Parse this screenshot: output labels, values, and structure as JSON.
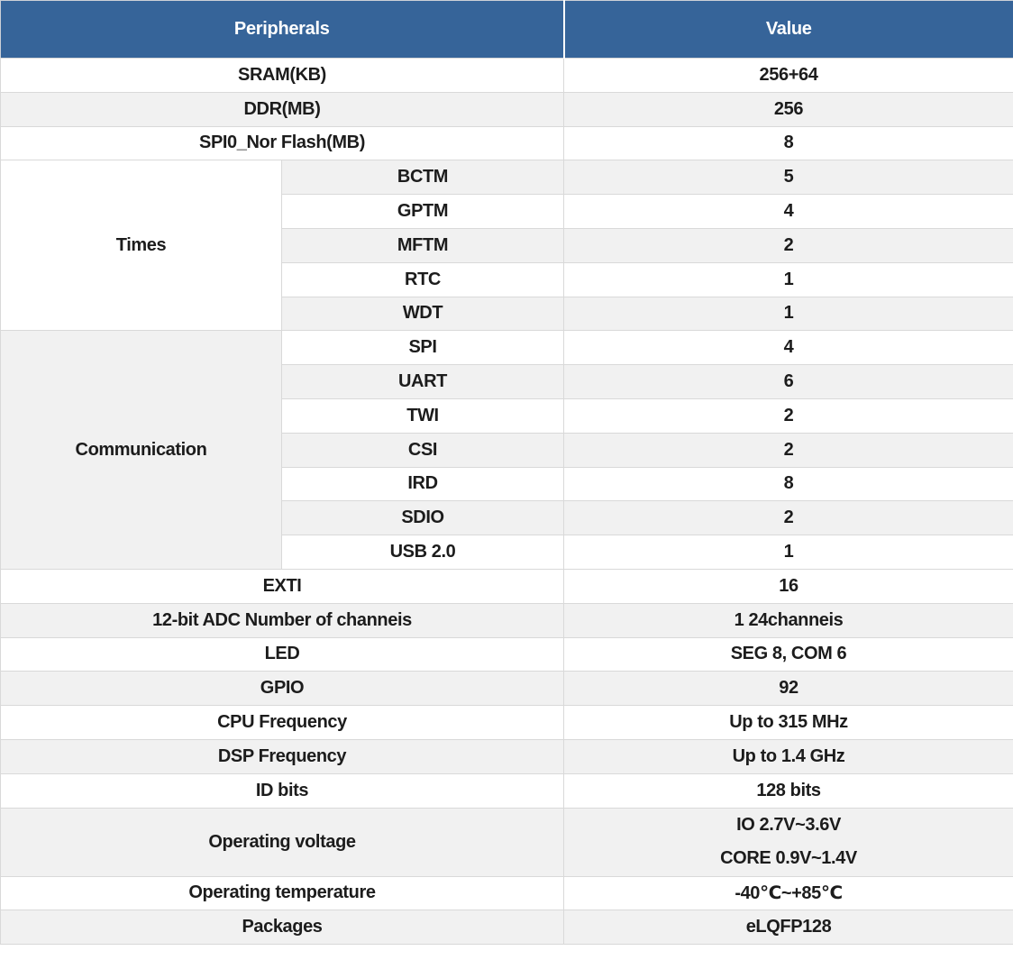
{
  "colors": {
    "header_bg": "#366499",
    "header_text": "#ffffff",
    "stripe_gray": "#f1f1f1",
    "row_white": "#ffffff",
    "border": "#d9d9d9",
    "text": "#1c1c1c"
  },
  "table": {
    "header": {
      "peripherals": "Peripherals",
      "value": "Value"
    },
    "top_rows": [
      {
        "label": "SRAM(KB)",
        "value": "256+64"
      },
      {
        "label": "DDR(MB)",
        "value": "256"
      },
      {
        "label": "SPI0_Nor Flash(MB)",
        "value": "8"
      }
    ],
    "groups": [
      {
        "label": "Times",
        "items": [
          {
            "label": "BCTM",
            "value": "5"
          },
          {
            "label": "GPTM",
            "value": "4"
          },
          {
            "label": "MFTM",
            "value": "2"
          },
          {
            "label": "RTC",
            "value": "1"
          },
          {
            "label": "WDT",
            "value": "1"
          }
        ]
      },
      {
        "label": "Communication",
        "items": [
          {
            "label": "SPI",
            "value": "4"
          },
          {
            "label": "UART",
            "value": "6"
          },
          {
            "label": "TWI",
            "value": "2"
          },
          {
            "label": "CSI",
            "value": "2"
          },
          {
            "label": "IRD",
            "value": "8"
          },
          {
            "label": "SDIO",
            "value": "2"
          },
          {
            "label": "USB 2.0",
            "value": "1"
          }
        ]
      }
    ],
    "bottom_rows": [
      {
        "label": "EXTI",
        "value": "16"
      },
      {
        "label": "12-bit ADC Number of channeis",
        "value": "1 24channeis"
      },
      {
        "label": "LED",
        "value": "SEG 8, COM 6"
      },
      {
        "label": "GPIO",
        "value": "92"
      },
      {
        "label": "CPU Frequency",
        "value": "Up to 315 MHz"
      },
      {
        "label": "DSP Frequency",
        "value": "Up to 1.4 GHz"
      },
      {
        "label": "ID bits",
        "value": "128 bits"
      },
      {
        "label": "Operating voltage",
        "value_lines": [
          "IO 2.7V~3.6V",
          "CORE 0.9V~1.4V"
        ]
      },
      {
        "label": "Operating temperature",
        "value": "-40℃~+85℃"
      },
      {
        "label": "Packages",
        "value": "eLQFP128"
      }
    ]
  },
  "chart_data": {
    "type": "table",
    "title": "Peripherals / Value specification table",
    "columns": [
      "Peripherals",
      "Value"
    ],
    "rows": [
      [
        "SRAM(KB)",
        "256+64"
      ],
      [
        "DDR(MB)",
        "256"
      ],
      [
        "SPI0_Nor Flash(MB)",
        "8"
      ],
      [
        "Times / BCTM",
        "5"
      ],
      [
        "Times / GPTM",
        "4"
      ],
      [
        "Times / MFTM",
        "2"
      ],
      [
        "Times / RTC",
        "1"
      ],
      [
        "Times / WDT",
        "1"
      ],
      [
        "Communication / SPI",
        "4"
      ],
      [
        "Communication / UART",
        "6"
      ],
      [
        "Communication / TWI",
        "2"
      ],
      [
        "Communication / CSI",
        "2"
      ],
      [
        "Communication / IRD",
        "8"
      ],
      [
        "Communication / SDIO",
        "2"
      ],
      [
        "Communication / USB 2.0",
        "1"
      ],
      [
        "EXTI",
        "16"
      ],
      [
        "12-bit ADC Number of channeis",
        "1 24channeis"
      ],
      [
        "LED",
        "SEG 8, COM 6"
      ],
      [
        "GPIO",
        "92"
      ],
      [
        "CPU Frequency",
        "Up to 315 MHz"
      ],
      [
        "DSP Frequency",
        "Up to 1.4 GHz"
      ],
      [
        "ID bits",
        "128 bits"
      ],
      [
        "Operating voltage",
        "IO 2.7V~3.6V / CORE 0.9V~1.4V"
      ],
      [
        "Operating temperature",
        "-40℃~+85℃"
      ],
      [
        "Packages",
        "eLQFP128"
      ]
    ]
  }
}
